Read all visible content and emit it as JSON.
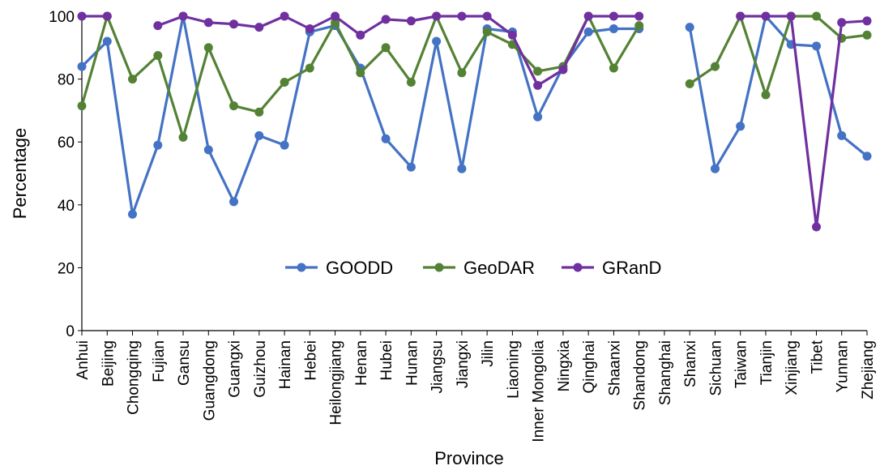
{
  "chart_data": {
    "type": "line",
    "xlabel": "Province",
    "ylabel": "Percentage",
    "ylim": [
      0,
      100
    ],
    "yticks": [
      "0",
      "20",
      "40",
      "60",
      "80",
      "100"
    ],
    "grid": false,
    "legend_position": "center",
    "categories": [
      "Anhui",
      "Beijing",
      "Chongqing",
      "Fujian",
      "Gansu",
      "Guangdong",
      "Guangxi",
      "Guizhou",
      "Hainan",
      "Hebei",
      "Heilongjiang",
      "Henan",
      "Hubei",
      "Hunan",
      "Jiangsu",
      "Jiangxi",
      "Jilin",
      "Liaoning",
      "Inner Mongolia",
      "Ningxia",
      "Qinghai",
      "Shaanxi",
      "Shandong",
      "Shanghai",
      "Shanxi",
      "Sichuan",
      "Taiwan",
      "Tianjin",
      "Xinjiang",
      "Tibet",
      "Yunnan",
      "Zhejiang"
    ],
    "series": [
      {
        "name": "GOODD",
        "color": "#4472C4",
        "values": [
          84,
          92,
          37,
          59,
          100,
          57.5,
          41,
          62,
          59,
          95,
          97,
          83.5,
          61,
          52,
          92,
          51.5,
          96,
          95,
          68,
          84,
          95,
          96,
          96,
          null,
          96.5,
          51.5,
          65,
          100,
          91,
          90.5,
          62,
          55.5
        ]
      },
      {
        "name": "GeoDAR",
        "color": "#548235",
        "values": [
          71.5,
          100,
          80,
          87.5,
          61.5,
          90,
          71.5,
          69.5,
          79,
          83.5,
          98,
          82,
          90,
          79,
          100,
          82,
          95,
          91,
          82.5,
          84,
          100,
          83.5,
          97,
          null,
          78.5,
          84,
          100,
          75,
          100,
          100,
          93,
          94
        ]
      },
      {
        "name": "GRanD",
        "color": "#7030A0",
        "values": [
          100,
          100,
          null,
          97,
          100,
          98,
          97.5,
          96.5,
          100,
          96,
          100,
          94,
          99,
          98.5,
          100,
          100,
          100,
          94,
          78,
          83,
          100,
          100,
          100,
          null,
          null,
          null,
          100,
          100,
          100,
          33,
          98,
          98.5
        ]
      }
    ]
  }
}
